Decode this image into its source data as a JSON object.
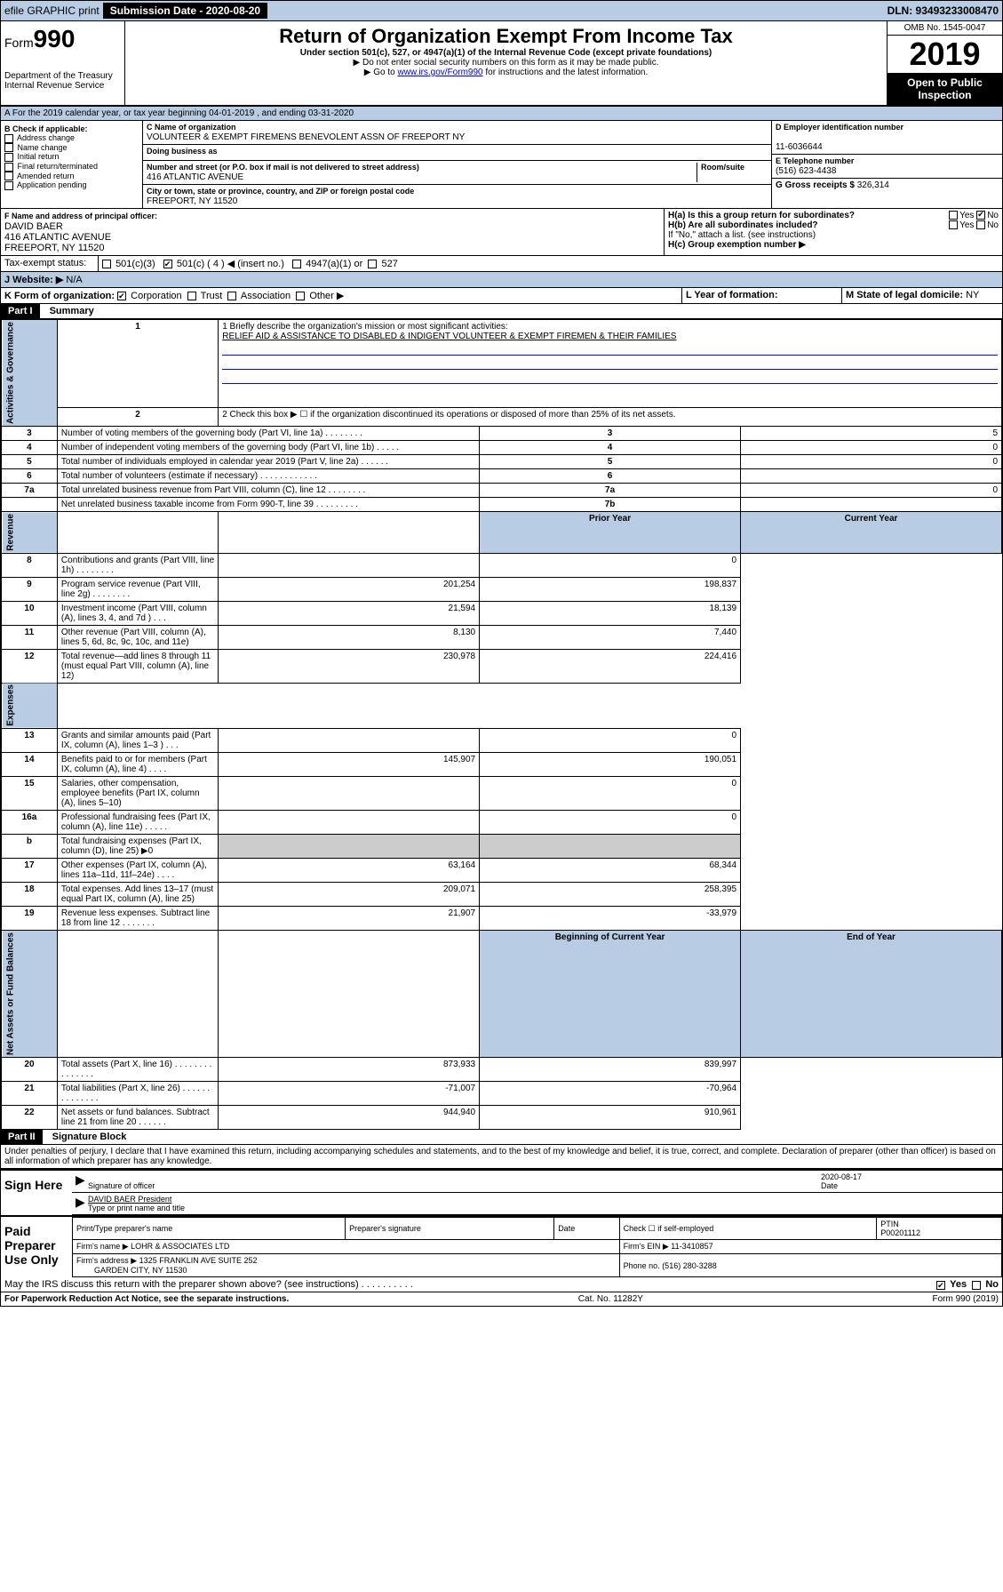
{
  "topbar": {
    "efile": "efile GRAPHIC print",
    "submission_label": "Submission Date - 2020-08-20",
    "dln": "DLN: 93493233008470"
  },
  "header": {
    "form_prefix": "Form",
    "form_number": "990",
    "dept": "Department of the Treasury",
    "irs": "Internal Revenue Service",
    "title": "Return of Organization Exempt From Income Tax",
    "subtitle": "Under section 501(c), 527, or 4947(a)(1) of the Internal Revenue Code (except private foundations)",
    "note1": "▶ Do not enter social security numbers on this form as it may be made public.",
    "note2_pre": "▶ Go to ",
    "note2_link": "www.irs.gov/Form990",
    "note2_post": " for instructions and the latest information.",
    "omb": "OMB No. 1545-0047",
    "year": "2019",
    "inspection": "Open to Public Inspection"
  },
  "line_a": "A For the 2019 calendar year, or tax year beginning 04-01-2019    , and ending 03-31-2020",
  "section_b": {
    "title": "B Check if applicable:",
    "items": [
      "Address change",
      "Name change",
      "Initial return",
      "Final return/terminated",
      "Amended return",
      "Application pending"
    ]
  },
  "section_c": {
    "name_label": "C Name of organization",
    "name": "VOLUNTEER & EXEMPT FIREMENS BENEVOLENT ASSN OF FREEPORT NY",
    "dba_label": "Doing business as",
    "dba": "",
    "addr_label": "Number and street (or P.O. box if mail is not delivered to street address)",
    "room_label": "Room/suite",
    "addr": "416 ATLANTIC AVENUE",
    "city_label": "City or town, state or province, country, and ZIP or foreign postal code",
    "city": "FREEPORT, NY  11520"
  },
  "section_d": {
    "label": "D Employer identification number",
    "value": "11-6036644"
  },
  "section_e": {
    "label": "E Telephone number",
    "value": "(516) 623-4438"
  },
  "section_g": {
    "label": "G Gross receipts $",
    "value": "326,314"
  },
  "section_f": {
    "label": "F  Name and address of principal officer:",
    "name": "DAVID BAER",
    "addr1": "416 ATLANTIC AVENUE",
    "addr2": "FREEPORT, NY  11520"
  },
  "section_h": {
    "ha_label": "H(a)  Is this a group return for subordinates?",
    "ha_yes": "Yes",
    "ha_no": "No",
    "hb_label": "H(b)  Are all subordinates included?",
    "hb_yes": "Yes",
    "hb_no": "No",
    "hb_note": "If \"No,\" attach a list. (see instructions)",
    "hc_label": "H(c)  Group exemption number ▶"
  },
  "tax_exempt": {
    "label": "Tax-exempt status:",
    "opt1": "501(c)(3)",
    "opt2_pre": "501(c) ( 4 ) ◀ (insert no.)",
    "opt3": "4947(a)(1) or",
    "opt4": "527"
  },
  "website": {
    "label": "J  Website: ▶",
    "value": "N/A"
  },
  "section_k": {
    "label": "K Form of organization:",
    "opts": [
      "Corporation",
      "Trust",
      "Association",
      "Other ▶"
    ]
  },
  "section_l": {
    "label": "L Year of formation:",
    "value": ""
  },
  "section_m": {
    "label": "M State of legal domicile:",
    "value": "NY"
  },
  "part1": {
    "badge": "Part I",
    "title": "Summary"
  },
  "line1": {
    "label": "1  Briefly describe the organization's mission or most significant activities:",
    "text": "RELIEF AID & ASSISTANCE TO DISABLED & INDIGENT VOLUNTEER & EXEMPT FIREMEN & THEIR FAMILIES"
  },
  "line2": "2   Check this box ▶ ☐  if the organization discontinued its operations or disposed of more than 25% of its net assets.",
  "side_labels": {
    "gov": "Activities & Governance",
    "rev": "Revenue",
    "exp": "Expenses",
    "net": "Net Assets or Fund Balances"
  },
  "col_hdrs": {
    "prior": "Prior Year",
    "current": "Current Year",
    "begin": "Beginning of Current Year",
    "end": "End of Year"
  },
  "rows_gov": [
    {
      "n": "3",
      "d": "Number of voting members of the governing body (Part VI, line 1a)  .  .  .  .  .  .  .  .",
      "l": "3",
      "v": "5"
    },
    {
      "n": "4",
      "d": "Number of independent voting members of the governing body (Part VI, line 1b)  .  .  .  .  .",
      "l": "4",
      "v": "0"
    },
    {
      "n": "5",
      "d": "Total number of individuals employed in calendar year 2019 (Part V, line 2a)  .  .  .  .  .  .",
      "l": "5",
      "v": "0"
    },
    {
      "n": "6",
      "d": "Total number of volunteers (estimate if necessary)  .  .  .  .  .  .  .  .  .  .  .  .",
      "l": "6",
      "v": ""
    },
    {
      "n": "7a",
      "d": "Total unrelated business revenue from Part VIII, column (C), line 12  .  .  .  .  .  .  .  .",
      "l": "7a",
      "v": "0"
    },
    {
      "n": "",
      "d": "Net unrelated business taxable income from Form 990-T, line 39  .  .  .  .  .  .  .  .  .",
      "l": "7b",
      "v": ""
    }
  ],
  "rows_rev": [
    {
      "n": "8",
      "d": "Contributions and grants (Part VIII, line 1h)  .  .  .  .  .  .  .  .",
      "p": "",
      "c": "0"
    },
    {
      "n": "9",
      "d": "Program service revenue (Part VIII, line 2g)  .  .  .  .  .  .  .  .",
      "p": "201,254",
      "c": "198,837"
    },
    {
      "n": "10",
      "d": "Investment income (Part VIII, column (A), lines 3, 4, and 7d )  .  .  .",
      "p": "21,594",
      "c": "18,139"
    },
    {
      "n": "11",
      "d": "Other revenue (Part VIII, column (A), lines 5, 6d, 8c, 9c, 10c, and 11e)",
      "p": "8,130",
      "c": "7,440"
    },
    {
      "n": "12",
      "d": "Total revenue—add lines 8 through 11 (must equal Part VIII, column (A), line 12)",
      "p": "230,978",
      "c": "224,416"
    }
  ],
  "rows_exp": [
    {
      "n": "13",
      "d": "Grants and similar amounts paid (Part IX, column (A), lines 1–3 )  .  .  .",
      "p": "",
      "c": "0"
    },
    {
      "n": "14",
      "d": "Benefits paid to or for members (Part IX, column (A), line 4)  .  .  .  .",
      "p": "145,907",
      "c": "190,051"
    },
    {
      "n": "15",
      "d": "Salaries, other compensation, employee benefits (Part IX, column (A), lines 5–10)",
      "p": "",
      "c": "0"
    },
    {
      "n": "16a",
      "d": "Professional fundraising fees (Part IX, column (A), line 11e)  .  .  .  .  .",
      "p": "",
      "c": "0"
    },
    {
      "n": "b",
      "d": "Total fundraising expenses (Part IX, column (D), line 25) ▶0",
      "p": "shade",
      "c": "shade"
    },
    {
      "n": "17",
      "d": "Other expenses (Part IX, column (A), lines 11a–11d, 11f–24e)  .  .  .  .",
      "p": "63,164",
      "c": "68,344"
    },
    {
      "n": "18",
      "d": "Total expenses. Add lines 13–17 (must equal Part IX, column (A), line 25)",
      "p": "209,071",
      "c": "258,395"
    },
    {
      "n": "19",
      "d": "Revenue less expenses. Subtract line 18 from line 12  .  .  .  .  .  .  .",
      "p": "21,907",
      "c": "-33,979"
    }
  ],
  "rows_net": [
    {
      "n": "20",
      "d": "Total assets (Part X, line 16)  .  .  .  .  .  .  .  .  .  .  .  .  .  .  .",
      "p": "873,933",
      "c": "839,997"
    },
    {
      "n": "21",
      "d": "Total liabilities (Part X, line 26)  .  .  .  .  .  .  .  .  .  .  .  .  .  .",
      "p": "-71,007",
      "c": "-70,964"
    },
    {
      "n": "22",
      "d": "Net assets or fund balances. Subtract line 21 from line 20  .  .  .  .  .  .",
      "p": "944,940",
      "c": "910,961"
    }
  ],
  "part2": {
    "badge": "Part II",
    "title": "Signature Block"
  },
  "perjury": "Under penalties of perjury, I declare that I have examined this return, including accompanying schedules and statements, and to the best of my knowledge and belief, it is true, correct, and complete. Declaration of preparer (other than officer) is based on all information of which preparer has any knowledge.",
  "sign": {
    "title": "Sign Here",
    "sig_label": "Signature of officer",
    "date_label": "Date",
    "date": "2020-08-17",
    "name": "DAVID BAER President",
    "name_label": "Type or print name and title"
  },
  "paid": {
    "title": "Paid Preparer Use Only",
    "c1": "Print/Type preparer's name",
    "c2": "Preparer's signature",
    "c3": "Date",
    "c4a": "Check ☐ if self-employed",
    "c5": "PTIN",
    "ptin": "P00201112",
    "firm_name_label": "Firm's name   ▶",
    "firm_name": "LOHR & ASSOCIATES LTD",
    "firm_ein_label": "Firm's EIN ▶",
    "firm_ein": "11-3410857",
    "firm_addr_label": "Firm's address ▶",
    "firm_addr1": "1325 FRANKLIN AVE SUITE 252",
    "firm_addr2": "GARDEN CITY, NY  11530",
    "phone_label": "Phone no.",
    "phone": "(516) 280-3288"
  },
  "discuss": {
    "q": "May the IRS discuss this return with the preparer shown above? (see instructions)  .  .  .  .  .  .  .  .  .  .",
    "yes": "Yes",
    "no": "No"
  },
  "footer": {
    "left": "For Paperwork Reduction Act Notice, see the separate instructions.",
    "mid": "Cat. No. 11282Y",
    "right": "Form 990 (2019)"
  }
}
